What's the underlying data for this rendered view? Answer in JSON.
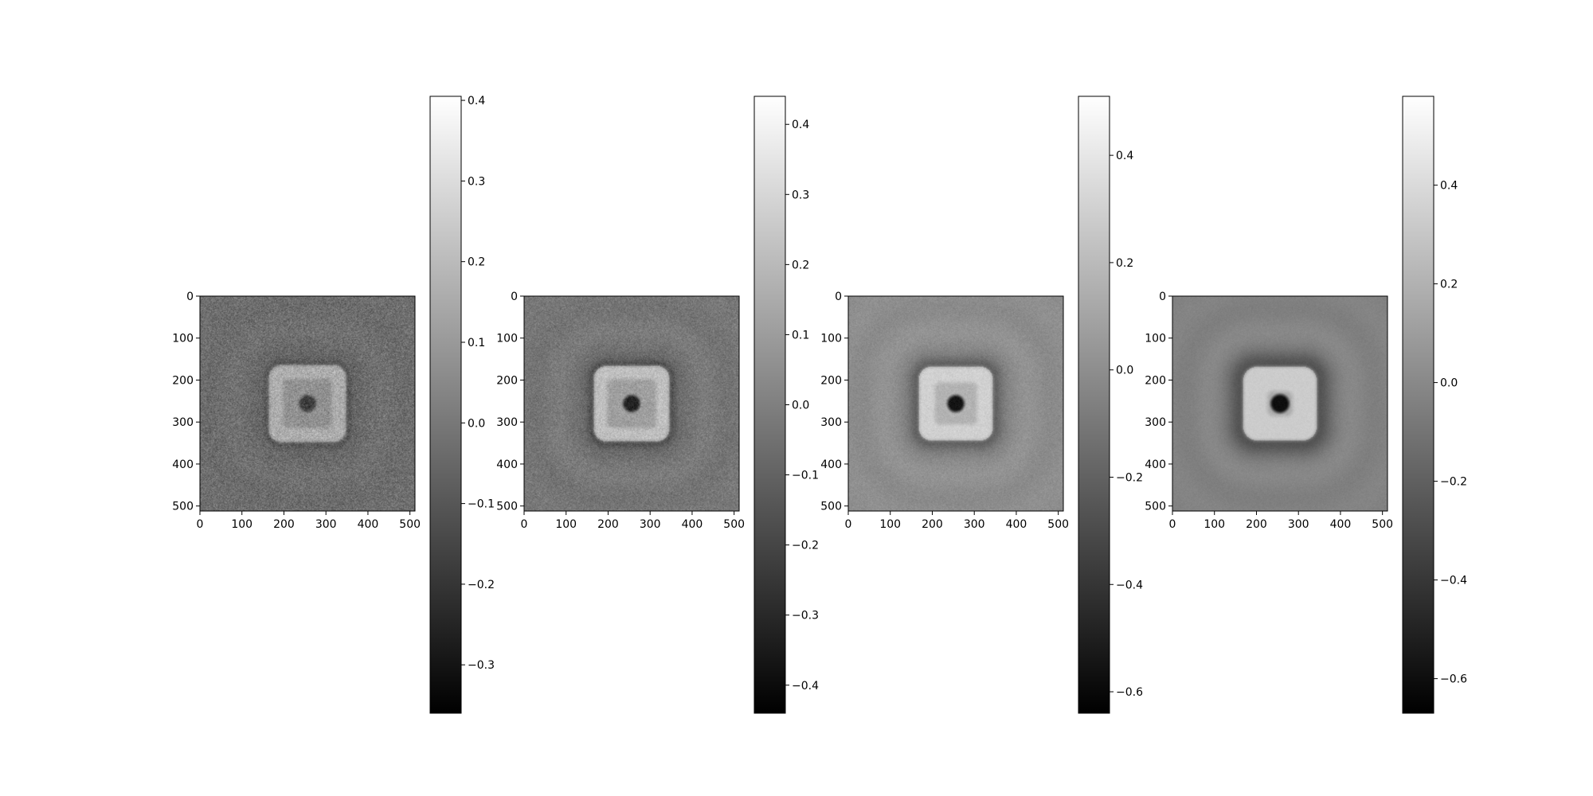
{
  "chart_data": [
    {
      "type": "heatmap",
      "colormap": "gray",
      "extent": [
        0,
        512
      ],
      "x_ticks": [
        0,
        100,
        200,
        300,
        400,
        500
      ],
      "y_ticks": [
        0,
        100,
        200,
        300,
        400,
        500
      ],
      "background": -0.03,
      "ring_value": 0.16,
      "ring_outer_halfwidth": 92,
      "ring_inner_halfwidth": 58,
      "ring_corner_radius": 30,
      "center_value": -0.17,
      "center_radius": 20,
      "halo_value": -0.08,
      "halo_width": 14,
      "noise": 0.06,
      "clim": [
        -0.36,
        0.405
      ],
      "colorbar_ticks": [
        -0.3,
        -0.2,
        -0.1,
        0.0,
        0.1,
        0.2,
        0.3,
        0.4
      ],
      "colorbar_tick_labels": [
        "−0.3",
        "−0.2",
        "−0.1",
        "0.0",
        "0.1",
        "0.2",
        "0.3",
        "0.4"
      ]
    },
    {
      "type": "heatmap",
      "colormap": "gray",
      "extent": [
        0,
        512
      ],
      "x_ticks": [
        0,
        100,
        200,
        300,
        400,
        500
      ],
      "y_ticks": [
        0,
        100,
        200,
        300,
        400,
        500
      ],
      "background": -0.03,
      "ring_value": 0.22,
      "ring_outer_halfwidth": 90,
      "ring_inner_halfwidth": 58,
      "ring_corner_radius": 30,
      "center_value": -0.32,
      "center_radius": 20,
      "halo_value": -0.14,
      "halo_width": 16,
      "noise": 0.05,
      "clim": [
        -0.44,
        0.44
      ],
      "colorbar_ticks": [
        -0.4,
        -0.3,
        -0.2,
        -0.1,
        0.0,
        0.1,
        0.2,
        0.3,
        0.4
      ],
      "colorbar_tick_labels": [
        "−0.4",
        "−0.3",
        "−0.2",
        "−0.1",
        "0.0",
        "0.1",
        "0.2",
        "0.3",
        "0.4"
      ]
    },
    {
      "type": "heatmap",
      "colormap": "gray",
      "extent": [
        0,
        512
      ],
      "x_ticks": [
        0,
        100,
        200,
        300,
        400,
        500
      ],
      "y_ticks": [
        0,
        100,
        200,
        300,
        400,
        500
      ],
      "background": 0.0,
      "ring_value": 0.3,
      "ring_outer_halfwidth": 88,
      "ring_inner_halfwidth": 50,
      "ring_corner_radius": 30,
      "center_value": -0.55,
      "center_radius": 20,
      "halo_value": -0.2,
      "halo_width": 22,
      "noise": 0.035,
      "clim": [
        -0.64,
        0.51
      ],
      "colorbar_ticks": [
        -0.6,
        -0.4,
        -0.2,
        0.0,
        0.2,
        0.4
      ],
      "colorbar_tick_labels": [
        "−0.6",
        "−0.4",
        "−0.2",
        "0.0",
        "0.2",
        "0.4"
      ]
    },
    {
      "type": "heatmap",
      "colormap": "gray",
      "extent": [
        0,
        512
      ],
      "x_ticks": [
        0,
        100,
        200,
        300,
        400,
        500
      ],
      "y_ticks": [
        0,
        100,
        200,
        300,
        400,
        500
      ],
      "background": -0.03,
      "ring_value": 0.33,
      "ring_outer_halfwidth": 88,
      "ring_inner_halfwidth": 30,
      "ring_corner_radius": 34,
      "center_value": -0.6,
      "center_radius": 22,
      "halo_value": -0.22,
      "halo_width": 30,
      "noise": 0.02,
      "clim": [
        -0.67,
        0.58
      ],
      "colorbar_ticks": [
        -0.6,
        -0.4,
        -0.2,
        0.0,
        0.2,
        0.4
      ],
      "colorbar_tick_labels": [
        "−0.6",
        "−0.4",
        "−0.2",
        "0.0",
        "0.2",
        "0.4"
      ]
    }
  ]
}
